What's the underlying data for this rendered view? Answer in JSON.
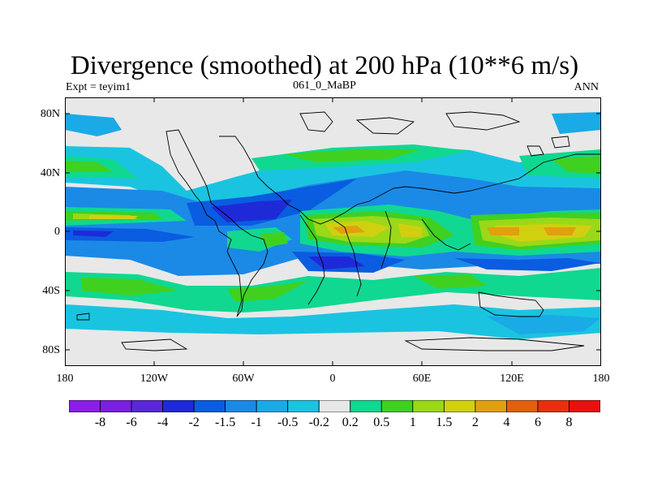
{
  "title": "Divergence (smoothed) at 200 hPa (10**6 m/s)",
  "subtitle_left": "Expt = teyim1",
  "subtitle_center": "061_0_MaBP",
  "subtitle_right": "ANN",
  "y_ticks": [
    "80N",
    "40N",
    "0",
    "40S",
    "80S"
  ],
  "x_ticks": [
    "180",
    "120W",
    "60W",
    "0",
    "60E",
    "120E",
    "180"
  ],
  "colorbar": {
    "labels": [
      "-8",
      "-6",
      "-4",
      "-2",
      "-1.5",
      "-1",
      "-0.5",
      "-0.2",
      "0.2",
      "0.5",
      "1",
      "1.5",
      "2",
      "4",
      "6",
      "8"
    ],
    "colors": [
      "#8a1ee6",
      "#7a20e0",
      "#5a28d8",
      "#1e2ad8",
      "#0a5ce0",
      "#1a8ae6",
      "#1aaae6",
      "#1ac4e0",
      "#e8e8e8",
      "#10d890",
      "#40d020",
      "#9ad818",
      "#d0d010",
      "#e0a010",
      "#e06010",
      "#e83010",
      "#e81010"
    ]
  },
  "map_colors": {
    "background": "#e8e8e8",
    "neg_weak": "#1ac4e0",
    "neg_light": "#1aaae6",
    "neg_mid": "#1a8ae6",
    "neg_deep": "#0a5ce0",
    "neg_core": "#1e2ad8",
    "pos_weak": "#10d890",
    "pos_mid": "#40d020",
    "pos_light": "#9ad818",
    "pos_yellow": "#d0d010",
    "pos_orange": "#e0a010"
  }
}
